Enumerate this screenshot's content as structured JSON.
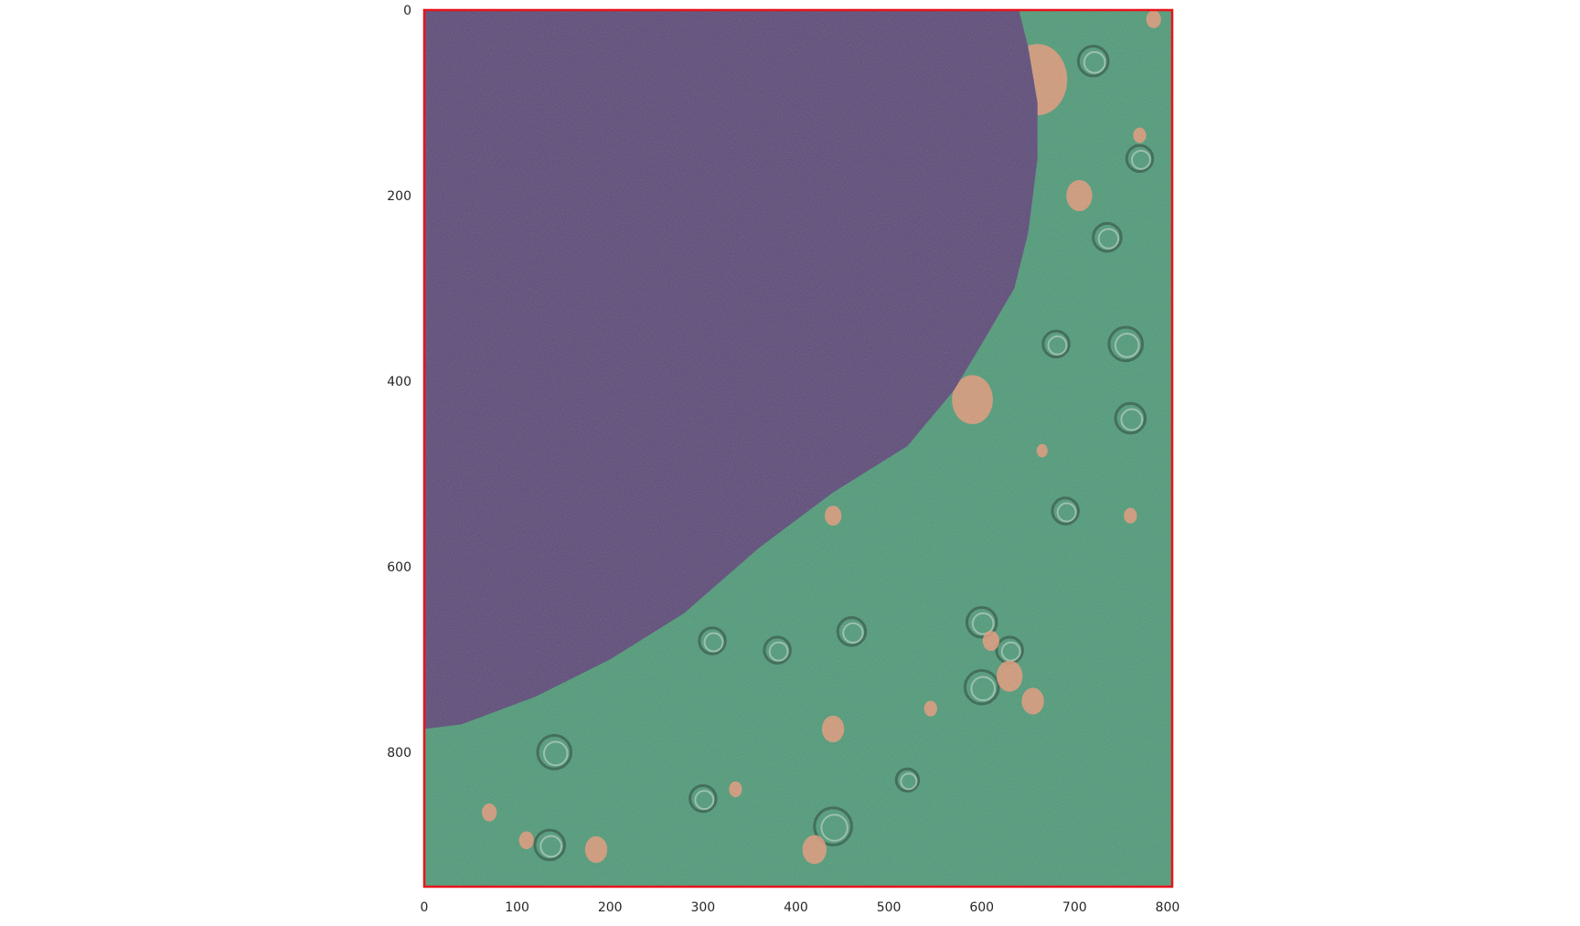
{
  "figure": {
    "colors": {
      "frame": "#e8141c",
      "nucleus_overlay": "#5c4a78",
      "cytoplasm_overlay": "#4f9a78",
      "vesicle_overlay": "#e89a7a",
      "texture_light": "#dfe8e2",
      "texture_dark": "#1f3a2c"
    },
    "axes": {
      "xlim": [
        0,
        805
      ],
      "ylim": [
        0,
        945
      ],
      "y_inverted": true,
      "x_ticks": [
        {
          "value": 0,
          "label": "0"
        },
        {
          "value": 100,
          "label": "100"
        },
        {
          "value": 200,
          "label": "200"
        },
        {
          "value": 300,
          "label": "300"
        },
        {
          "value": 400,
          "label": "400"
        },
        {
          "value": 500,
          "label": "500"
        },
        {
          "value": 600,
          "label": "600"
        },
        {
          "value": 700,
          "label": "700"
        },
        {
          "value": 800,
          "label": "800"
        }
      ],
      "y_ticks": [
        {
          "value": 0,
          "label": "0"
        },
        {
          "value": 200,
          "label": "200"
        },
        {
          "value": 400,
          "label": "400"
        },
        {
          "value": 600,
          "label": "600"
        },
        {
          "value": 800,
          "label": "800"
        }
      ]
    },
    "nucleus_boundary": [
      [
        640,
        0
      ],
      [
        650,
        40
      ],
      [
        660,
        100
      ],
      [
        660,
        160
      ],
      [
        650,
        240
      ],
      [
        635,
        300
      ],
      [
        600,
        360
      ],
      [
        570,
        410
      ],
      [
        520,
        470
      ],
      [
        440,
        520
      ],
      [
        360,
        580
      ],
      [
        280,
        650
      ],
      [
        200,
        700
      ],
      [
        120,
        740
      ],
      [
        40,
        770
      ],
      [
        0,
        775
      ]
    ],
    "vesicles": [
      {
        "cx": 660,
        "cy": 75,
        "r": 32
      },
      {
        "cx": 705,
        "cy": 200,
        "r": 14
      },
      {
        "cx": 590,
        "cy": 420,
        "r": 22
      },
      {
        "cx": 440,
        "cy": 545,
        "r": 9
      },
      {
        "cx": 610,
        "cy": 680,
        "r": 9
      },
      {
        "cx": 630,
        "cy": 718,
        "r": 14
      },
      {
        "cx": 655,
        "cy": 745,
        "r": 12
      },
      {
        "cx": 440,
        "cy": 775,
        "r": 12
      },
      {
        "cx": 545,
        "cy": 753,
        "r": 7
      },
      {
        "cx": 185,
        "cy": 905,
        "r": 12
      },
      {
        "cx": 420,
        "cy": 905,
        "r": 13
      },
      {
        "cx": 335,
        "cy": 840,
        "r": 7
      },
      {
        "cx": 70,
        "cy": 865,
        "r": 8
      },
      {
        "cx": 110,
        "cy": 895,
        "r": 8
      },
      {
        "cx": 785,
        "cy": 10,
        "r": 8
      },
      {
        "cx": 770,
        "cy": 135,
        "r": 7
      },
      {
        "cx": 665,
        "cy": 475,
        "r": 6
      },
      {
        "cx": 760,
        "cy": 545,
        "r": 7
      }
    ],
    "organelle_rings": [
      {
        "cx": 720,
        "cy": 55,
        "r": 16
      },
      {
        "cx": 770,
        "cy": 160,
        "r": 14
      },
      {
        "cx": 735,
        "cy": 245,
        "r": 15
      },
      {
        "cx": 755,
        "cy": 360,
        "r": 18
      },
      {
        "cx": 680,
        "cy": 360,
        "r": 14
      },
      {
        "cx": 760,
        "cy": 440,
        "r": 16
      },
      {
        "cx": 600,
        "cy": 660,
        "r": 16
      },
      {
        "cx": 630,
        "cy": 690,
        "r": 14
      },
      {
        "cx": 600,
        "cy": 730,
        "r": 18
      },
      {
        "cx": 460,
        "cy": 670,
        "r": 15
      },
      {
        "cx": 380,
        "cy": 690,
        "r": 14
      },
      {
        "cx": 310,
        "cy": 680,
        "r": 14
      },
      {
        "cx": 140,
        "cy": 800,
        "r": 18
      },
      {
        "cx": 135,
        "cy": 900,
        "r": 16
      },
      {
        "cx": 440,
        "cy": 880,
        "r": 20
      },
      {
        "cx": 300,
        "cy": 850,
        "r": 14
      },
      {
        "cx": 520,
        "cy": 830,
        "r": 12
      },
      {
        "cx": 690,
        "cy": 540,
        "r": 14
      }
    ]
  }
}
